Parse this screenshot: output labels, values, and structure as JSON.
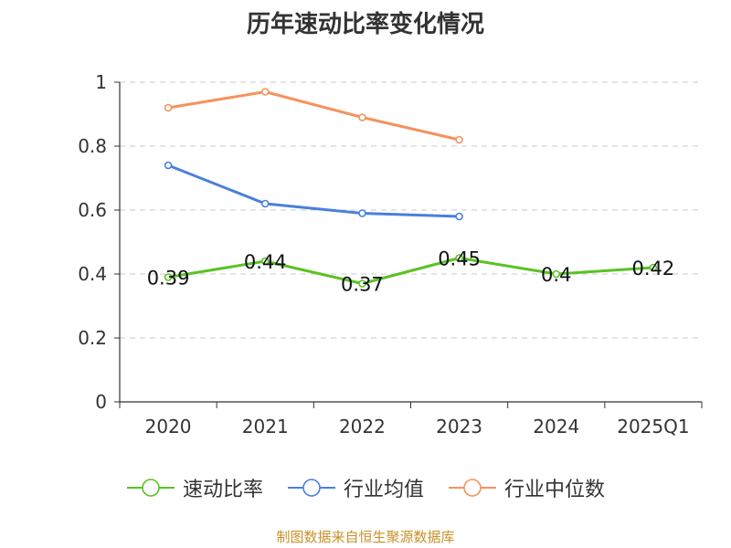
{
  "title": "历年速动比率变化情况",
  "source": "制图数据来自恒生聚源数据库",
  "chart_data": {
    "type": "line",
    "title": "历年速动比率变化情况",
    "categories": [
      "2020",
      "2021",
      "2022",
      "2023",
      "2024",
      "2025Q1"
    ],
    "ylim": [
      0,
      1
    ],
    "yticks": [
      0,
      0.2,
      0.4,
      0.6,
      0.8,
      1
    ],
    "ytick_labels": [
      "0",
      "0.2",
      "0.4",
      "0.6",
      "0.8",
      "1"
    ],
    "grid": true,
    "legend_position": "bottom",
    "series": [
      {
        "name": "速动比率",
        "color": "#5bc224",
        "values": [
          0.39,
          0.44,
          0.37,
          0.45,
          0.4,
          0.42
        ],
        "data_labels": [
          "0.39",
          "0.44",
          "0.37",
          "0.45",
          "0.4",
          "0.42"
        ]
      },
      {
        "name": "行业均值",
        "color": "#4a7fdc",
        "values": [
          0.74,
          0.62,
          0.59,
          0.58,
          null,
          null
        ]
      },
      {
        "name": "行业中位数",
        "color": "#f5925e",
        "values": [
          0.92,
          0.97,
          0.89,
          0.82,
          null,
          null
        ]
      }
    ]
  }
}
